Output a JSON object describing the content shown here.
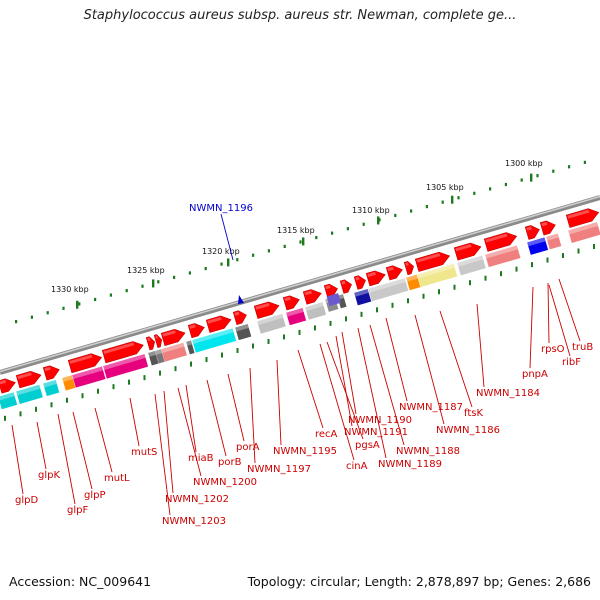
{
  "title": "Staphylococcus aureus subsp. aureus str. Newman, complete ge...",
  "footer": {
    "accession": "Accession: NC_009641",
    "stats": "Topology: circular; Length: 2,878,897 bp; Genes: 2,686"
  },
  "colors": {
    "forward_gene": "#ff0000",
    "label": "#cc0000",
    "highlight_label": "#0000cc",
    "ruler_tick": "#1e7a1e",
    "backbone": "#7d7d7d"
  },
  "ruler_ticks": [
    "1300 kbp",
    "1305 kbp",
    "1310 kbp",
    "1315 kbp",
    "1320 kbp",
    "1325 kbp",
    "1330 kbp"
  ],
  "highlight": {
    "label": "NWMN_1196"
  },
  "gene_labels": [
    "truB",
    "rpsO",
    "ribF",
    "pnpA",
    "NWMN_1184",
    "ftsK",
    "NWMN_1186",
    "NWMN_1187",
    "NWMN_1188",
    "NWMN_1189",
    "NWMN_1190",
    "NWMN_1191",
    "pgsA",
    "cinA",
    "recA",
    "NWMN_1195",
    "NWMN_1197",
    "porA",
    "porB",
    "miaB",
    "NWMN_1200",
    "NWMN_1202",
    "NWMN_1203",
    "mutS",
    "mutL",
    "glpP",
    "glpF",
    "glpK",
    "glpD"
  ]
}
